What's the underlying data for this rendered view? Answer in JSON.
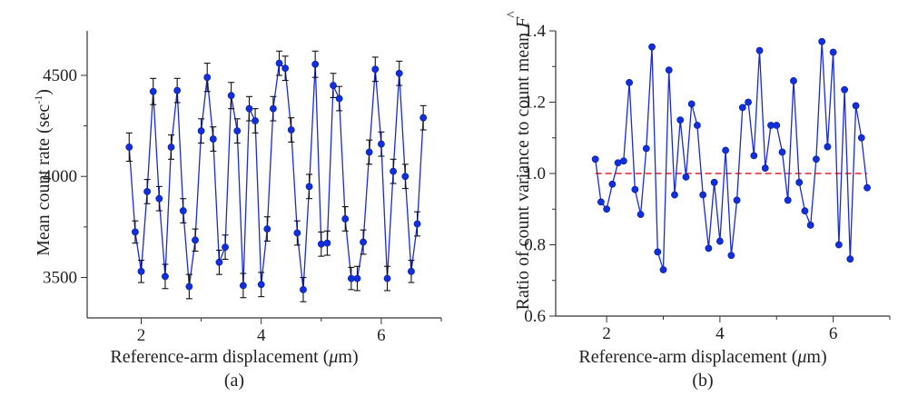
{
  "colors": {
    "series": "#1a2bd0",
    "marker": "#1030e0",
    "error_bar": "#111111",
    "reference": "#e0202a",
    "axis": "#333333"
  },
  "chart_data": [
    {
      "type": "scatter",
      "panel_label": "(a)",
      "xlabel": {
        "text": "Reference-arm displacement (",
        "unit": "μ",
        "tail": "m)"
      },
      "ylabel": {
        "text": "Mean count rate (sec",
        "sup": "-1",
        "tail": ")"
      },
      "xlim": [
        1.1,
        7.0
      ],
      "ylim": [
        3300,
        4720
      ],
      "xticks": [
        2,
        4,
        6
      ],
      "yticks": [
        3500,
        4000,
        4500
      ],
      "connect_points": true,
      "error_bars": true,
      "series": [
        {
          "x": [
            1.8,
            1.9,
            2.0,
            2.1,
            2.2,
            2.3,
            2.4,
            2.5,
            2.6,
            2.7,
            2.8,
            2.9,
            3.0,
            3.1,
            3.2,
            3.3,
            3.4,
            3.5,
            3.6,
            3.7,
            3.8,
            3.9,
            4.0,
            4.1,
            4.2,
            4.3,
            4.4,
            4.5,
            4.6,
            4.7,
            4.8,
            4.9,
            5.0,
            5.1,
            5.2,
            5.3,
            5.4,
            5.5,
            5.6,
            5.7,
            5.8,
            5.9,
            6.0,
            6.1,
            6.2,
            6.3,
            6.4,
            6.5,
            6.6,
            6.7
          ],
          "y": [
            4145,
            3725,
            3530,
            3925,
            4420,
            3890,
            3505,
            4145,
            4425,
            3830,
            3455,
            3685,
            4225,
            4490,
            4185,
            3575,
            3650,
            4400,
            4225,
            3460,
            4335,
            4275,
            3465,
            3740,
            4335,
            4560,
            4535,
            4230,
            3720,
            3440,
            3950,
            4555,
            3665,
            3670,
            4450,
            4385,
            3790,
            3495,
            3495,
            3675,
            4120,
            4530,
            4160,
            3495,
            4025,
            4510,
            4000,
            3530,
            3765,
            4290
          ],
          "err": [
            70,
            55,
            55,
            60,
            65,
            60,
            60,
            60,
            60,
            60,
            60,
            55,
            60,
            70,
            60,
            60,
            60,
            65,
            60,
            60,
            60,
            60,
            60,
            60,
            60,
            60,
            60,
            60,
            60,
            60,
            60,
            65,
            60,
            60,
            60,
            60,
            60,
            55,
            60,
            60,
            60,
            60,
            60,
            60,
            60,
            60,
            60,
            55,
            60,
            60
          ]
        }
      ]
    },
    {
      "type": "scatter",
      "panel_label": "(b)",
      "xlabel": {
        "text": "Reference-arm displacement (",
        "unit": "μ",
        "tail": "m)"
      },
      "ylabel": {
        "text": "Ratio of count variance to count mean ",
        "symbol": "F",
        "hat": "^"
      },
      "xlim": [
        1.1,
        7.0
      ],
      "ylim": [
        0.6,
        1.4
      ],
      "xticks": [
        2,
        4,
        6
      ],
      "yticks": [
        0.6,
        0.8,
        1.0,
        1.2,
        1.4
      ],
      "ytick_labels": [
        "0.6",
        "0.8",
        "1.0",
        "1.2",
        "1.4"
      ],
      "connect_points": true,
      "reference_line": {
        "y": 1.0,
        "x_range": [
          1.8,
          6.6
        ],
        "style": "dashed"
      },
      "series": [
        {
          "x": [
            1.8,
            1.9,
            2.0,
            2.1,
            2.2,
            2.3,
            2.4,
            2.5,
            2.6,
            2.7,
            2.8,
            2.9,
            3.0,
            3.1,
            3.2,
            3.3,
            3.4,
            3.5,
            3.6,
            3.7,
            3.8,
            3.9,
            4.0,
            4.1,
            4.2,
            4.3,
            4.4,
            4.5,
            4.6,
            4.7,
            4.8,
            4.9,
            5.0,
            5.1,
            5.2,
            5.3,
            5.4,
            5.5,
            5.6,
            5.7,
            5.8,
            5.9,
            6.0,
            6.1,
            6.2,
            6.3,
            6.4,
            6.5,
            6.6
          ],
          "y": [
            1.04,
            0.92,
            0.9,
            0.97,
            1.03,
            1.035,
            1.255,
            0.955,
            0.885,
            1.07,
            1.355,
            0.78,
            0.73,
            1.29,
            0.94,
            1.15,
            0.99,
            1.195,
            1.135,
            0.94,
            0.79,
            0.975,
            0.81,
            1.065,
            0.77,
            0.925,
            1.185,
            1.2,
            1.05,
            1.345,
            1.015,
            1.135,
            1.135,
            1.06,
            0.925,
            1.26,
            0.975,
            0.895,
            0.855,
            1.04,
            1.37,
            1.075,
            1.34,
            0.8,
            1.235,
            0.76,
            1.19,
            1.1,
            0.96
          ]
        }
      ]
    }
  ]
}
